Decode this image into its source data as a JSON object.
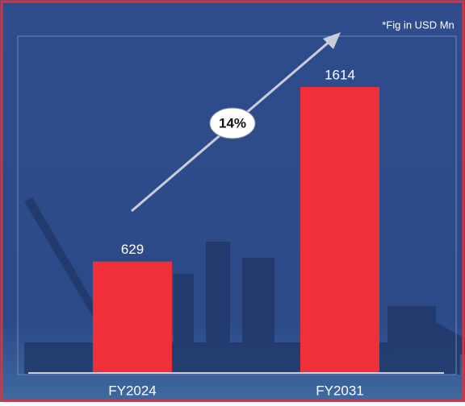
{
  "chart_data": {
    "type": "bar",
    "note": "*Fig in USD Mn",
    "annotation": "14%",
    "categories": [
      "FY2024",
      "FY2031"
    ],
    "values": [
      629,
      1614
    ],
    "color": "#f03038"
  }
}
